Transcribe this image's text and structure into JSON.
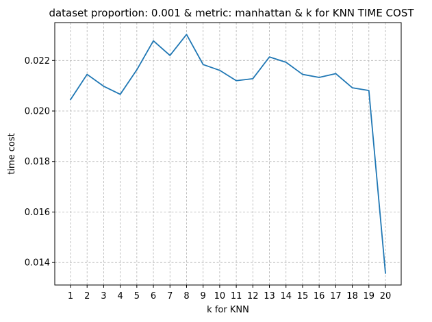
{
  "chart_data": {
    "type": "line",
    "title": "dataset proportion: 0.001 & metric: manhattan & k for KNN TIME COST",
    "xlabel": "k for KNN",
    "ylabel": "time cost",
    "x": [
      1,
      2,
      3,
      4,
      5,
      6,
      7,
      8,
      9,
      10,
      11,
      12,
      13,
      14,
      15,
      16,
      17,
      18,
      19,
      20
    ],
    "x_tick_labels": [
      "1",
      "2",
      "3",
      "4",
      "5",
      "6",
      "7",
      "8",
      "9",
      "10",
      "11",
      "12",
      "13",
      "14",
      "15",
      "16",
      "17",
      "18",
      "19",
      "20"
    ],
    "y_ticks": [
      0.014,
      0.016,
      0.018,
      0.02,
      0.022
    ],
    "y_tick_labels": [
      "0.014",
      "0.016",
      "0.018",
      "0.020",
      "0.022"
    ],
    "series": [
      {
        "values": [
          0.02045,
          0.02145,
          0.02098,
          0.02066,
          0.02163,
          0.02278,
          0.0222,
          0.02303,
          0.02184,
          0.02161,
          0.0212,
          0.02128,
          0.02214,
          0.02193,
          0.02145,
          0.02133,
          0.02148,
          0.02092,
          0.02081,
          0.01358
        ]
      }
    ],
    "xlim": [
      0.05,
      20.95
    ],
    "ylim": [
      0.01311,
      0.0235
    ],
    "grid": true,
    "grid_style": "dashed",
    "line_color": "#1f77b4",
    "grid_color": "#b0b0b0"
  }
}
